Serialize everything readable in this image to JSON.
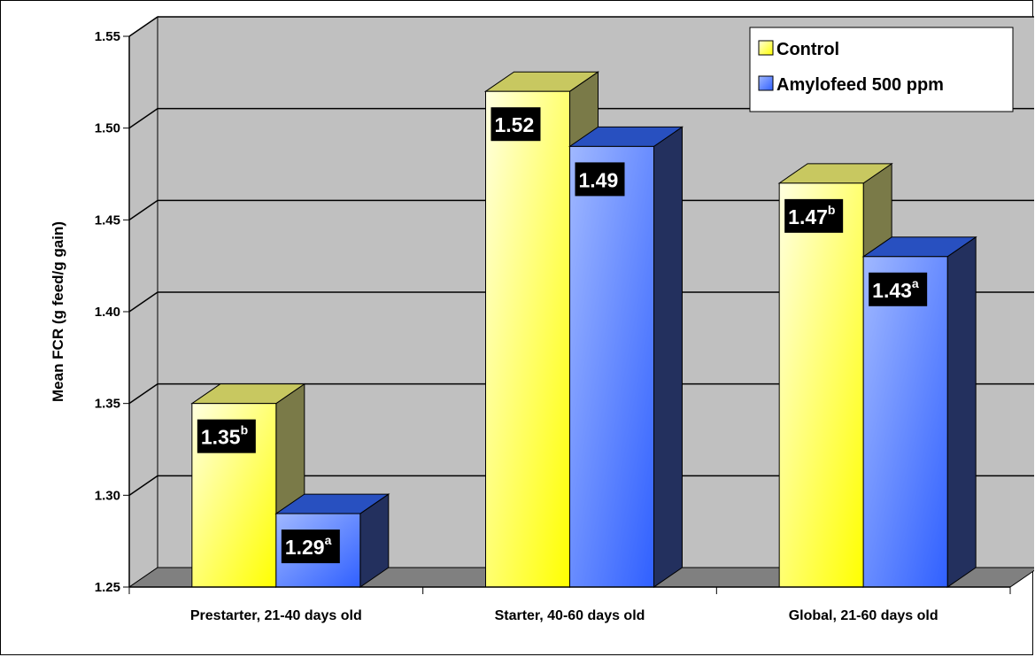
{
  "colors": {
    "control_front_light": "#ffffe0",
    "control_front_dark": "#ffff00",
    "control_top": "#c8c860",
    "control_side": "#7a7a48",
    "amylo_front_light": "#a0b8ff",
    "amylo_front_dark": "#3060ff",
    "amylo_top": "#2850c0",
    "amylo_side": "#23305e",
    "wall": "#c0c0c0",
    "floor": "#808080"
  },
  "chart_data": {
    "type": "bar",
    "categories": [
      "Prestarter, 21-40 days old",
      "Starter, 40-60 days old",
      "Global, 21-60 days old"
    ],
    "series": [
      {
        "name": "Control",
        "values": [
          1.35,
          1.52,
          1.47
        ],
        "labels": [
          "1.35",
          "1.52",
          "1.47"
        ],
        "superscripts": [
          "b",
          "",
          "b"
        ]
      },
      {
        "name": "Amylofeed 500 ppm",
        "values": [
          1.29,
          1.49,
          1.43
        ],
        "labels": [
          "1.29",
          "1.49",
          "1.43"
        ],
        "superscripts": [
          "a",
          "",
          "a"
        ]
      }
    ],
    "ylabel": "Mean FCR (g feed/g gain)",
    "xlabel": "",
    "ylim": [
      1.25,
      1.55
    ],
    "yticks": [
      "1.25",
      "1.30",
      "1.35",
      "1.40",
      "1.45",
      "1.50",
      "1.55"
    ],
    "grid": true,
    "legend_position": "top-right",
    "style": "3d-clustered-column"
  }
}
